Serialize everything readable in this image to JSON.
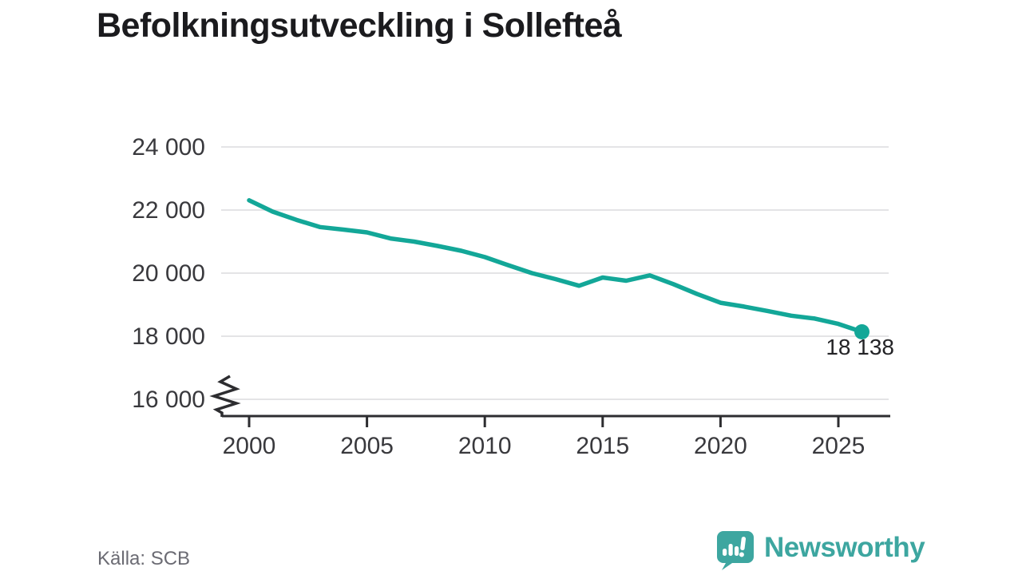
{
  "header": {
    "title": "Befolkningsutveckling i Sollefteå"
  },
  "chart_data": {
    "type": "line",
    "title": "Befolkningsutveckling i Sollefteå",
    "xlabel": "",
    "ylabel": "",
    "xlim": [
      1999,
      2027.3
    ],
    "ylim": [
      16000,
      24600
    ],
    "grid": "horizontal-only",
    "axis_break_at_bottom": true,
    "line_color": "#13a798",
    "series": [
      {
        "name": "Befolkning i Sollefteå",
        "x": [
          2000,
          2001,
          2002,
          2003,
          2004,
          2005,
          2006,
          2007,
          2008,
          2009,
          2010,
          2011,
          2012,
          2013,
          2014,
          2015,
          2016,
          2017,
          2018,
          2019,
          2020,
          2021,
          2022,
          2023,
          2024,
          2025,
          2026
        ],
        "values": [
          22310,
          21950,
          21690,
          21460,
          21380,
          21290,
          21100,
          21000,
          20860,
          20710,
          20510,
          20250,
          20000,
          19810,
          19600,
          19860,
          19760,
          19930,
          19650,
          19340,
          19060,
          18940,
          18800,
          18650,
          18560,
          18390,
          18138
        ]
      }
    ],
    "x_ticks": {
      "values": [
        2000,
        2005,
        2010,
        2015,
        2020,
        2025
      ],
      "labels": [
        "2000",
        "2005",
        "2010",
        "2015",
        "2020",
        "2025"
      ]
    },
    "y_ticks": {
      "values": [
        24000,
        22000,
        20000,
        18000,
        16000
      ],
      "labels": [
        "24 000",
        "22 000",
        "20 000",
        "18 000",
        "16 000"
      ]
    },
    "end_point": {
      "year": 2026,
      "value": 18138,
      "label": "18 138",
      "marker": "dot"
    }
  },
  "footer": {
    "source": "Källa: SCB",
    "brand": "Newsworthy"
  },
  "colors": {
    "line": "#13a798",
    "logo": "#3da6a0",
    "grid": "#e4e4e6",
    "axis": "#2d2d30",
    "tick_text": "#39393d",
    "title_text": "#1b1b1e",
    "source_text": "#6b6b73"
  }
}
